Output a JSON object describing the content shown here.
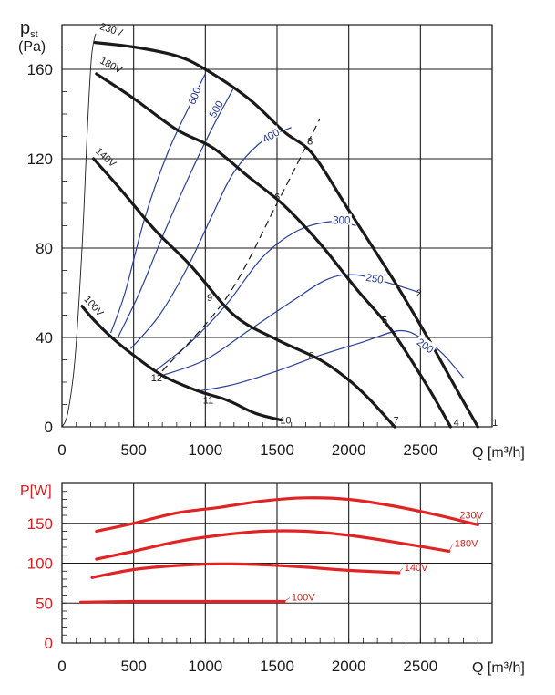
{
  "chart_data": [
    {
      "type": "line",
      "title": "",
      "ylabel": "pst (Pa)",
      "ylabel_main": "p",
      "ylabel_sub": "st",
      "ylabel_unit": "(Pa)",
      "xlabel": "Q [m³/h]",
      "xlim": [
        0,
        3000
      ],
      "ylim": [
        0,
        180
      ],
      "x_ticks": [
        0,
        500,
        1000,
        1500,
        2000,
        2500
      ],
      "y_ticks": [
        0,
        40,
        80,
        120,
        160
      ],
      "grid": true,
      "voltage_series": [
        {
          "name": "230V",
          "label": "230V",
          "points": [
            [
              230,
              172
            ],
            [
              500,
              170
            ],
            [
              800,
              166
            ],
            [
              1000,
              160
            ],
            [
              1300,
              147
            ],
            [
              1550,
              132
            ],
            [
              1750,
              122
            ],
            [
              2000,
              97
            ],
            [
              2300,
              67
            ],
            [
              2550,
              40
            ],
            [
              2750,
              17
            ],
            [
              2900,
              0
            ]
          ]
        },
        {
          "name": "180V",
          "label": "180V",
          "points": [
            [
              240,
              158
            ],
            [
              500,
              147
            ],
            [
              800,
              133
            ],
            [
              1050,
              125
            ],
            [
              1300,
              112
            ],
            [
              1550,
              99
            ],
            [
              1800,
              82
            ],
            [
              2050,
              62
            ],
            [
              2300,
              43
            ],
            [
              2550,
              18
            ],
            [
              2710,
              0
            ]
          ]
        },
        {
          "name": "140V",
          "label": "140V",
          "points": [
            [
              220,
              120
            ],
            [
              400,
              107
            ],
            [
              650,
              88
            ],
            [
              900,
              72
            ],
            [
              1200,
              50
            ],
            [
              1500,
              39
            ],
            [
              1800,
              30
            ],
            [
              2000,
              21
            ],
            [
              2150,
              12
            ],
            [
              2320,
              0
            ]
          ]
        },
        {
          "name": "100V",
          "label": "100V",
          "points": [
            [
              140,
              54
            ],
            [
              220,
              48
            ],
            [
              330,
              41
            ],
            [
              480,
              33
            ],
            [
              700,
              23
            ],
            [
              950,
              16
            ],
            [
              1150,
              12
            ],
            [
              1350,
              6
            ],
            [
              1530,
              3
            ]
          ]
        }
      ],
      "rpm_series": [
        {
          "name": "600",
          "label": "600",
          "points": [
            [
              340,
              42
            ],
            [
              440,
              60
            ],
            [
              580,
              94
            ],
            [
              740,
              123
            ],
            [
              900,
              145
            ],
            [
              1000,
              158
            ]
          ]
        },
        {
          "name": "500",
          "label": "500",
          "points": [
            [
              390,
              40
            ],
            [
              540,
              60
            ],
            [
              720,
              88
            ],
            [
              900,
              114
            ],
            [
              1050,
              134
            ],
            [
              1200,
              152
            ]
          ]
        },
        {
          "name": "400",
          "label": "400",
          "points": [
            [
              480,
              35
            ],
            [
              680,
              50
            ],
            [
              880,
              72
            ],
            [
              1050,
              95
            ],
            [
              1200,
              114
            ],
            [
              1400,
              128
            ],
            [
              1600,
              134
            ]
          ]
        },
        {
          "name": "300",
          "label": "300",
          "points": [
            [
              650,
              25
            ],
            [
              900,
              38
            ],
            [
              1150,
              55
            ],
            [
              1400,
              76
            ],
            [
              1650,
              88
            ],
            [
              1900,
              92
            ],
            [
              2050,
              90
            ]
          ]
        },
        {
          "name": "250",
          "label": "250",
          "points": [
            [
              700,
              23
            ],
            [
              1000,
              30
            ],
            [
              1300,
              43
            ],
            [
              1600,
              56
            ],
            [
              1850,
              66
            ],
            [
              2050,
              68
            ],
            [
              2300,
              64
            ],
            [
              2500,
              60
            ]
          ]
        },
        {
          "name": "200",
          "label": "200",
          "points": [
            [
              950,
              16
            ],
            [
              1200,
              19
            ],
            [
              1500,
              25
            ],
            [
              1800,
              32
            ],
            [
              2100,
              38
            ],
            [
              2350,
              43
            ],
            [
              2500,
              40
            ],
            [
              2650,
              33
            ],
            [
              2800,
              22
            ]
          ]
        }
      ],
      "system_line": {
        "points": [
          [
            700,
            25
          ],
          [
            1150,
            58
          ],
          [
            1500,
            100
          ],
          [
            1800,
            138
          ]
        ],
        "style": "dashed"
      },
      "point_labels": [
        {
          "label": "1",
          "x": 3020,
          "y": 2
        },
        {
          "label": "2",
          "x": 2490,
          "y": 60
        },
        {
          "label": "3",
          "x": 1730,
          "y": 128
        },
        {
          "label": "4",
          "x": 2750,
          "y": 2
        },
        {
          "label": "5",
          "x": 2250,
          "y": 48
        },
        {
          "label": "6",
          "x": 1500,
          "y": 103
        },
        {
          "label": "7",
          "x": 2330,
          "y": 3
        },
        {
          "label": "8",
          "x": 1740,
          "y": 32
        },
        {
          "label": "9",
          "x": 1030,
          "y": 58
        },
        {
          "label": "10",
          "x": 1560,
          "y": 3
        },
        {
          "label": "11",
          "x": 1020,
          "y": 12
        },
        {
          "label": "12",
          "x": 660,
          "y": 22
        }
      ]
    },
    {
      "type": "line",
      "title": "",
      "ylabel": "P[W]",
      "xlabel": "Q [m³/h]",
      "xlim": [
        0,
        3000
      ],
      "ylim": [
        0,
        200
      ],
      "x_ticks": [
        0,
        500,
        1000,
        1500,
        2000,
        2500
      ],
      "y_ticks": [
        0,
        50,
        100,
        150
      ],
      "grid": true,
      "series": [
        {
          "name": "230V",
          "label": "230V",
          "points": [
            [
              240,
              140
            ],
            [
              500,
              150
            ],
            [
              800,
              163
            ],
            [
              1100,
              170
            ],
            [
              1400,
              178
            ],
            [
              1700,
              182
            ],
            [
              2000,
              180
            ],
            [
              2300,
              172
            ],
            [
              2600,
              161
            ],
            [
              2900,
              148
            ]
          ]
        },
        {
          "name": "180V",
          "label": "180V",
          "points": [
            [
              240,
              105
            ],
            [
              500,
              115
            ],
            [
              800,
              127
            ],
            [
              1100,
              135
            ],
            [
              1400,
              140
            ],
            [
              1700,
              140
            ],
            [
              2000,
              135
            ],
            [
              2300,
              127
            ],
            [
              2700,
              115
            ]
          ]
        },
        {
          "name": "140V",
          "label": "140V",
          "points": [
            [
              210,
              82
            ],
            [
              500,
              92
            ],
            [
              800,
              97
            ],
            [
              1100,
              99
            ],
            [
              1400,
              98
            ],
            [
              1700,
              95
            ],
            [
              2000,
              91
            ],
            [
              2350,
              88
            ]
          ]
        },
        {
          "name": "100V",
          "label": "100V",
          "points": [
            [
              130,
              51
            ],
            [
              500,
              52
            ],
            [
              1000,
              52
            ],
            [
              1550,
              52
            ]
          ]
        }
      ]
    }
  ]
}
